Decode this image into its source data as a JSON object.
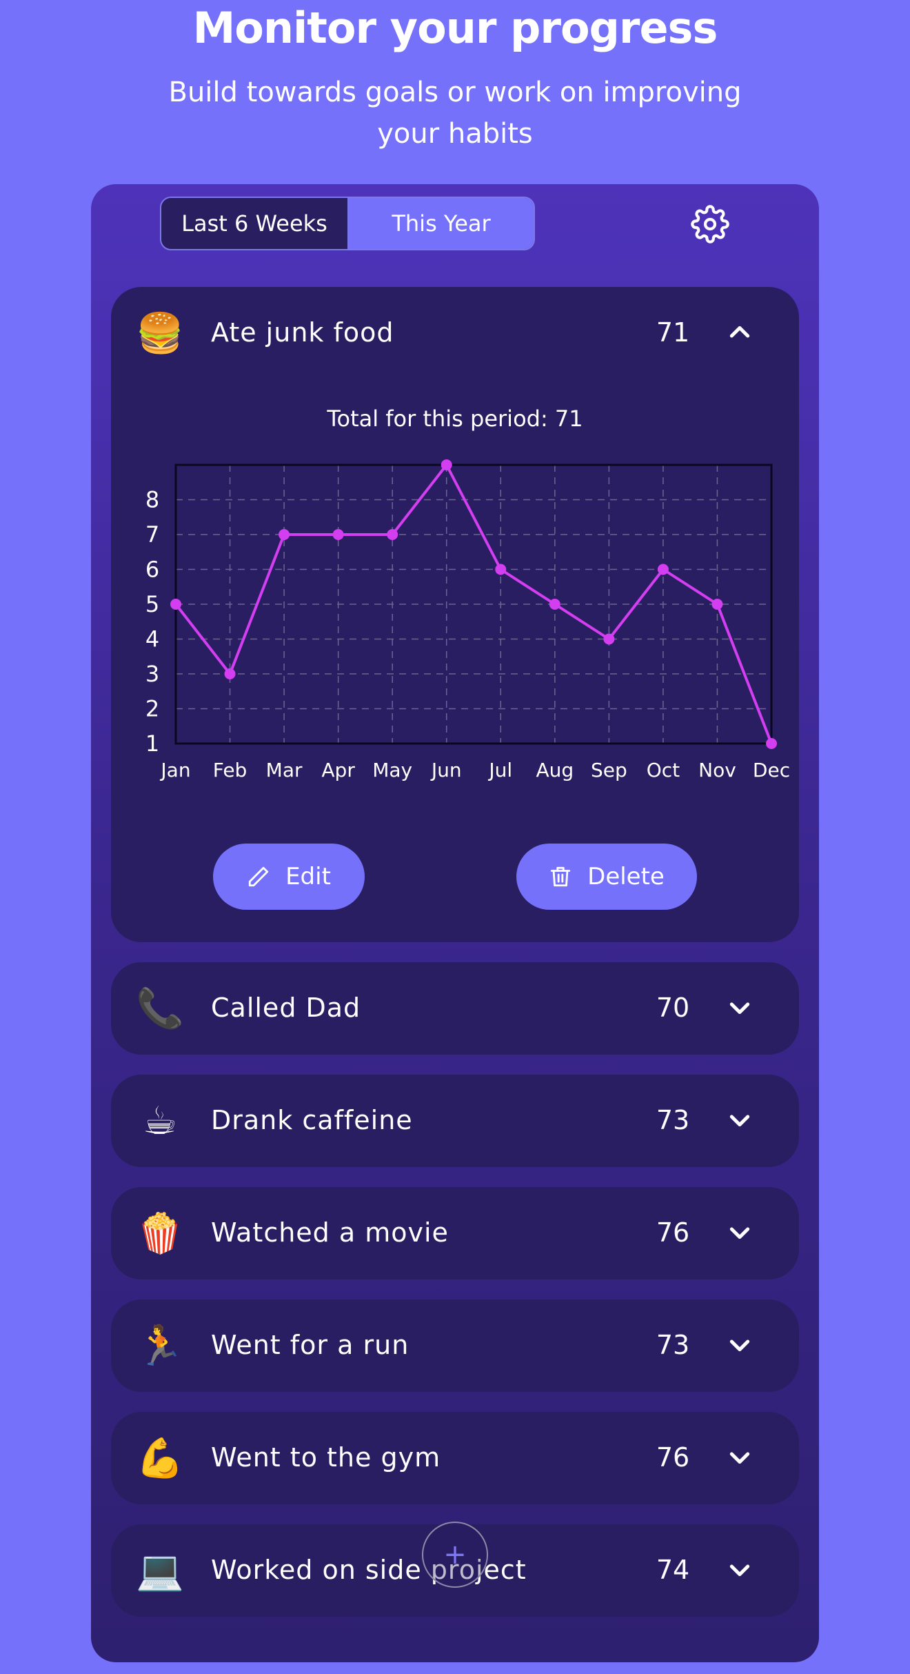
{
  "header": {
    "title": "Monitor your progress",
    "subtitle": "Build towards goals or work on improving your habits"
  },
  "tabs": [
    {
      "label": "Last 6 Weeks",
      "selected": true
    },
    {
      "label": "This Year",
      "selected": false
    }
  ],
  "settings_icon": "gear-icon",
  "expanded_item": {
    "emoji": "🍔",
    "label": "Ate junk food",
    "count": "71",
    "period_total": "Total for this period: 71",
    "edit_label": "Edit",
    "delete_label": "Delete"
  },
  "items": [
    {
      "emoji": "📞",
      "label": "Called Dad",
      "count": "70"
    },
    {
      "emoji": "☕",
      "label": "Drank caffeine",
      "count": "73"
    },
    {
      "emoji": "🍿",
      "label": "Watched a movie",
      "count": "76"
    },
    {
      "emoji": "🏃",
      "label": "Went for a run",
      "count": "73"
    },
    {
      "emoji": "💪",
      "label": "Went to the gym",
      "count": "76"
    },
    {
      "emoji": "💻",
      "label": "Worked on side project",
      "count": "74"
    }
  ],
  "fab_label": "+",
  "colors": {
    "background": "#7671fa",
    "card": "#291e61",
    "line": "#d33ef0",
    "button": "#7671fa"
  },
  "chart_data": {
    "type": "line",
    "categories": [
      "Jan",
      "Feb",
      "Mar",
      "Apr",
      "May",
      "Jun",
      "Jul",
      "Aug",
      "Sep",
      "Oct",
      "Nov",
      "Dec"
    ],
    "values": [
      5,
      3,
      7,
      7,
      7,
      9,
      6,
      5,
      4,
      6,
      5,
      1
    ],
    "yticks": [
      1,
      2,
      3,
      4,
      5,
      6,
      7,
      8
    ],
    "ylim": [
      1,
      9
    ],
    "grid": true
  }
}
